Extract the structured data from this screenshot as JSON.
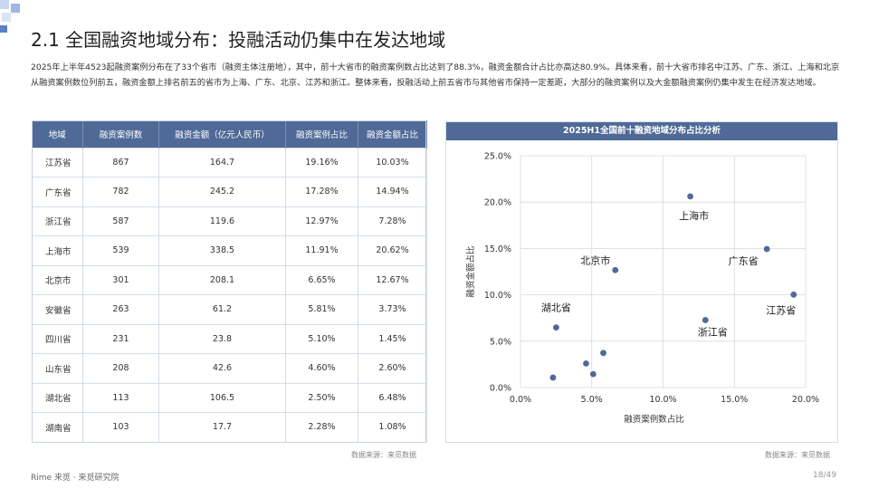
{
  "title": "2.1 全国融资地域分布：投融活动仍集中在发达地域",
  "intro": "2025年上半年4523起融资案例分布在了33个省市（融资主体注册地），其中，前十大省市的融资案例数占比达到了88.3%，融资金额合计占比亦高达80.9%。具体来看，前十大省市排名中江苏、广东、浙江、上海和北京从融资案例数位列前五，融资金额上排名前五的省市为上海、广东、北京、江苏和浙江。整体来看，投融活动上前五省市与其他省市保持一定差距，大部分的融资案例以及大金额融资案例仍集中发生在经济发达地域。",
  "table": {
    "headers": [
      "地域",
      "融资案例数",
      "融资金额（亿元人民币）",
      "融资案例占比",
      "融资金额占比"
    ],
    "rows": [
      [
        "江苏省",
        "867",
        "164.7",
        "19.16%",
        "10.03%"
      ],
      [
        "广东省",
        "782",
        "245.2",
        "17.28%",
        "14.94%"
      ],
      [
        "浙江省",
        "587",
        "119.6",
        "12.97%",
        "7.28%"
      ],
      [
        "上海市",
        "539",
        "338.5",
        "11.91%",
        "20.62%"
      ],
      [
        "北京市",
        "301",
        "208.1",
        "6.65%",
        "12.67%"
      ],
      [
        "安徽省",
        "263",
        "61.2",
        "5.81%",
        "3.73%"
      ],
      [
        "四川省",
        "231",
        "23.8",
        "5.10%",
        "1.45%"
      ],
      [
        "山东省",
        "208",
        "42.6",
        "4.60%",
        "2.60%"
      ],
      [
        "湖北省",
        "113",
        "106.5",
        "2.50%",
        "6.48%"
      ],
      [
        "湖南省",
        "103",
        "17.7",
        "2.28%",
        "1.08%"
      ]
    ]
  },
  "source_left": "数据来源：来觅数据",
  "source_right": "数据来源：来觅数据",
  "chart_data": {
    "type": "scatter",
    "title": "2025H1全国前十融资地域分布占比分析",
    "xlabel": "融资案例数占比",
    "ylabel": "融资金额占比",
    "xlim": [
      0,
      20
    ],
    "ylim": [
      0,
      25
    ],
    "xticks": [
      "0.0%",
      "5.0%",
      "10.0%",
      "15.0%",
      "20.0%"
    ],
    "yticks": [
      "0.0%",
      "5.0%",
      "10.0%",
      "15.0%",
      "20.0%",
      "25.0%"
    ],
    "grid": true,
    "point_color": "#4f6a97",
    "points": [
      {
        "label": "江苏省",
        "x": 19.16,
        "y": 10.03
      },
      {
        "label": "广东省",
        "x": 17.28,
        "y": 14.94
      },
      {
        "label": "浙江省",
        "x": 12.97,
        "y": 7.28
      },
      {
        "label": "上海市",
        "x": 11.91,
        "y": 20.62
      },
      {
        "label": "北京市",
        "x": 6.65,
        "y": 12.67
      },
      {
        "label": "",
        "x": 5.81,
        "y": 3.73
      },
      {
        "label": "",
        "x": 5.1,
        "y": 1.45
      },
      {
        "label": "",
        "x": 4.6,
        "y": 2.6
      },
      {
        "label": "湖北省",
        "x": 2.5,
        "y": 6.48
      },
      {
        "label": "",
        "x": 2.28,
        "y": 1.08
      }
    ]
  },
  "footer": {
    "brand": "Rime 来觅 · 来觅研究院",
    "page": "18/49"
  },
  "colors": {
    "header_blue": "#4f6a97",
    "accent": "#4f6a97"
  }
}
